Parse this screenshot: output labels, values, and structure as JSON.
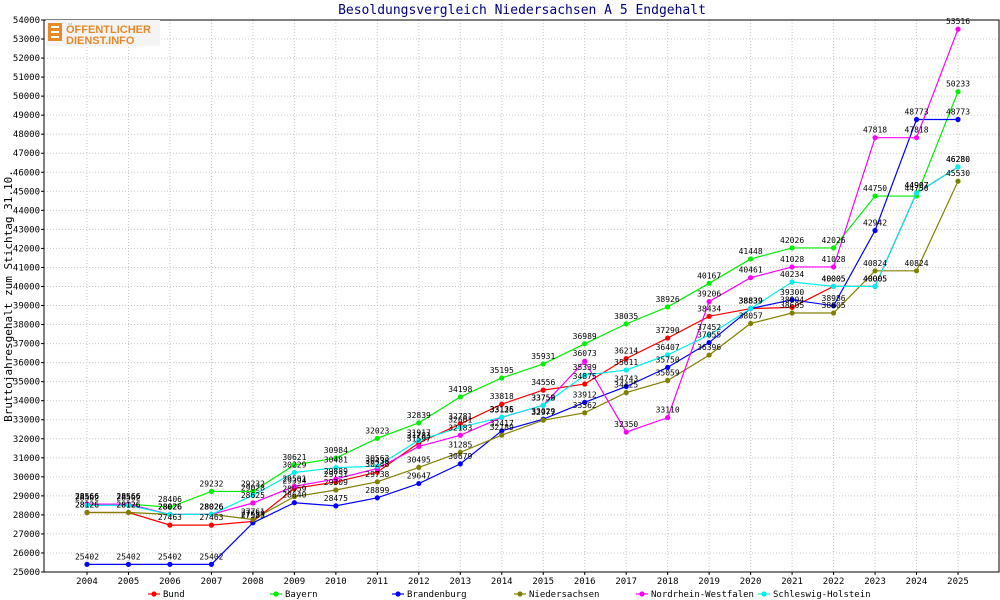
{
  "logo": {
    "line1": "ÖFFENTLICHER",
    "line2": "DIENST.INFO"
  },
  "chart_data": {
    "type": "line",
    "title": "Besoldungsvergleich Niedersachsen A 5 Endgehalt",
    "ylabel": "Bruttojahresgehalt zum Stichtag 31.10.",
    "xlabel": "",
    "x": [
      "2004",
      "2005",
      "2006",
      "2007",
      "2008",
      "2009",
      "2010",
      "2011",
      "2012",
      "2013",
      "2014",
      "2015",
      "2016",
      "2017",
      "2018",
      "2019",
      "2020",
      "2021",
      "2022",
      "2023",
      "2024",
      "2025"
    ],
    "ylim": [
      25000,
      54000
    ],
    "ytick_step": 1000,
    "grid": true,
    "legend_position": "bottom",
    "series": [
      {
        "name": "Bund",
        "color": "#ff0000",
        "values": [
          28126,
          28126,
          27463,
          27463,
          27659,
          29394,
          29731,
          30248,
          31783,
          32781,
          33818,
          34556,
          34875,
          36214,
          37290,
          38434,
          38839,
          38904,
          40005,
          40005,
          44907,
          46280
        ]
      },
      {
        "name": "Bayern",
        "color": "#00ee00",
        "values": [
          28566,
          28566,
          28406,
          29232,
          29232,
          30621,
          30984,
          32023,
          32839,
          34198,
          35195,
          35931,
          36989,
          38035,
          38926,
          40167,
          41448,
          42026,
          42026,
          44750,
          44750,
          50233
        ]
      },
      {
        "name": "Brandenburg",
        "color": "#0000ff",
        "values": [
          25402,
          25402,
          25402,
          25402,
          27583,
          28640,
          28475,
          28899,
          29647,
          30679,
          32417,
          33029,
          33912,
          34743,
          35750,
          37055,
          38839,
          39300,
          38986,
          42942,
          48773,
          48773
        ]
      },
      {
        "name": "Niedersachsen",
        "color": "#808000",
        "values": [
          28126,
          28126,
          28026,
          28026,
          27761,
          28959,
          29309,
          29738,
          30495,
          31285,
          32189,
          32977,
          33362,
          34425,
          35059,
          36396,
          38057,
          38605,
          38605,
          40824,
          40824,
          45530
        ]
      },
      {
        "name": "Nordrhein-Westfalen",
        "color": "#ff00ff",
        "values": [
          28566,
          28566,
          28026,
          28026,
          28625,
          29501,
          29889,
          30438,
          31597,
          32183,
          33126,
          33758,
          36073,
          32350,
          33110,
          39206,
          40461,
          41028,
          41028,
          47818,
          47818,
          53516
        ]
      },
      {
        "name": "Schleswig-Holstein",
        "color": "#00eeee",
        "values": [
          28502,
          28502,
          28026,
          28026,
          29028,
          30229,
          30481,
          30563,
          31917,
          32601,
          33135,
          33759,
          35339,
          35611,
          36407,
          37452,
          38839,
          40234,
          40005,
          40005,
          44907,
          46280
        ]
      }
    ]
  }
}
